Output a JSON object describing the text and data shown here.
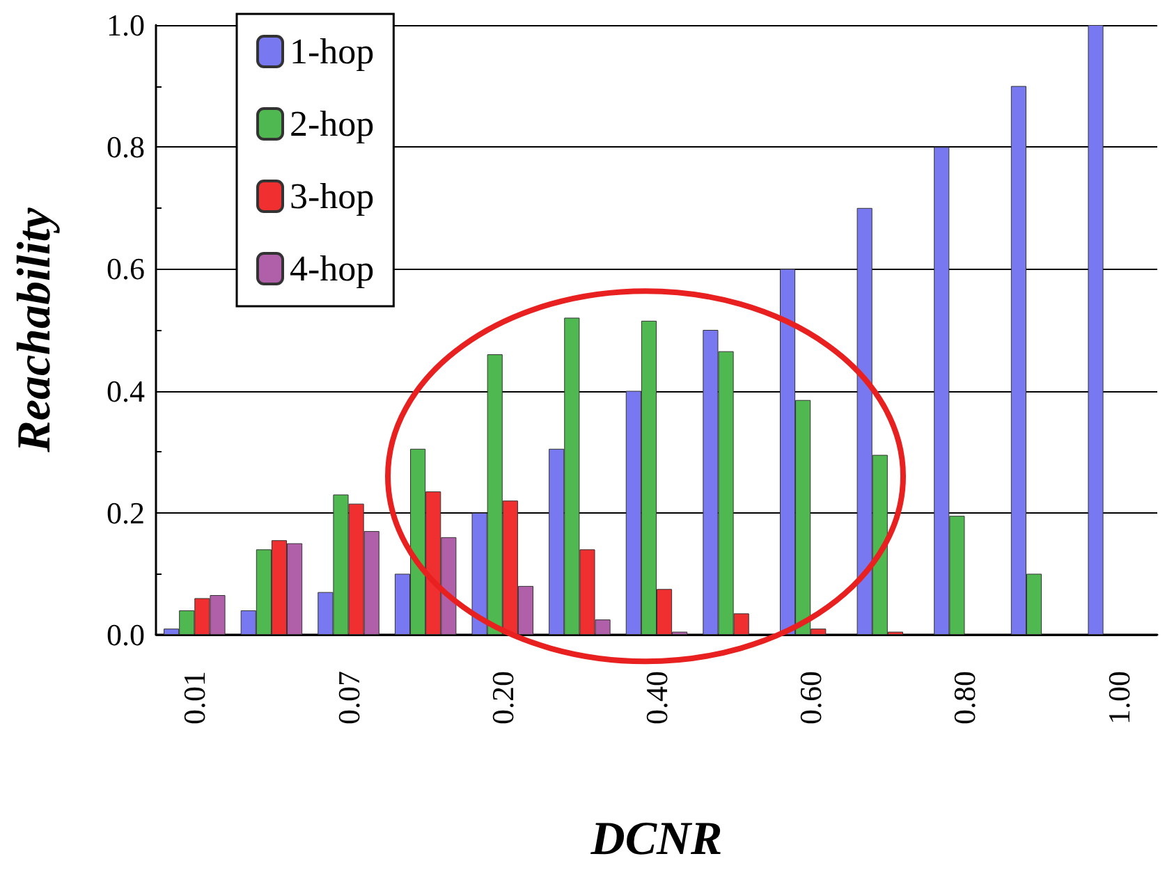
{
  "chart_data": {
    "type": "bar",
    "xlabel": "DCNR",
    "ylabel": "Reachability",
    "categories": [
      "0.01",
      null,
      "0.07",
      null,
      "0.20",
      null,
      "0.40",
      null,
      "0.60",
      null,
      "0.80",
      null,
      "1.00"
    ],
    "series": [
      {
        "name": "1-hop",
        "color": "#7878f0",
        "values": [
          0.01,
          0.04,
          0.07,
          0.1,
          0.2,
          0.305,
          0.4,
          0.5,
          0.6,
          0.7,
          0.8,
          0.9,
          1.0
        ]
      },
      {
        "name": "2-hop",
        "color": "#50b850",
        "values": [
          0.04,
          0.14,
          0.23,
          0.305,
          0.46,
          0.52,
          0.515,
          0.465,
          0.385,
          0.295,
          0.195,
          0.1,
          0
        ]
      },
      {
        "name": "3-hop",
        "color": "#f03030",
        "values": [
          0.06,
          0.155,
          0.215,
          0.235,
          0.22,
          0.14,
          0.075,
          0.035,
          0.01,
          0.005,
          0,
          0,
          0
        ]
      },
      {
        "name": "4-hop",
        "color": "#b060a8",
        "values": [
          0.065,
          0.15,
          0.17,
          0.16,
          0.08,
          0.025,
          0.005,
          0,
          0,
          0,
          0,
          0,
          0
        ]
      }
    ],
    "ylim": [
      0,
      1.0
    ],
    "yticks": [
      {
        "value": 0,
        "label": "0.0"
      },
      {
        "value": 0.2,
        "label": "0.2"
      },
      {
        "value": 0.4,
        "label": "0.4"
      },
      {
        "value": 0.6,
        "label": "0.6"
      },
      {
        "value": 0.8,
        "label": "0.8"
      },
      {
        "value": 1.0,
        "label": "1.0"
      }
    ],
    "grid": "y",
    "legend": "top left"
  }
}
